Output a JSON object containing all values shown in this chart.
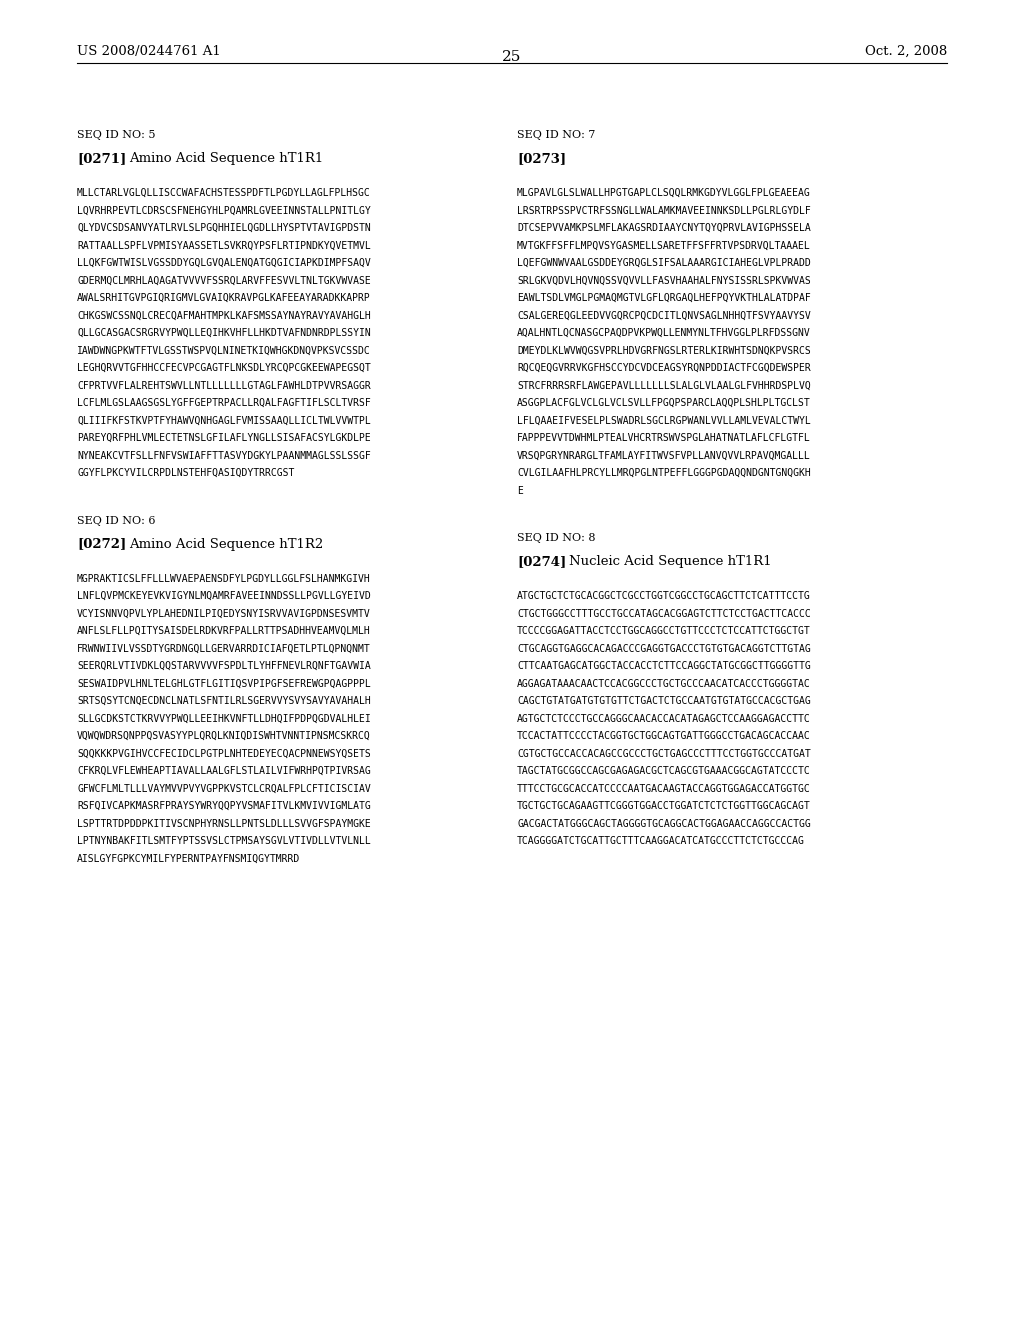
{
  "bg_color": "#ffffff",
  "page_width": 10.24,
  "page_height": 13.2,
  "header_left": "US 2008/0244761 A1",
  "header_right": "Oct. 2, 2008",
  "page_number": "25",
  "sections": [
    {
      "id": "seq5",
      "col": 0,
      "label": "SEQ ID NO: 5",
      "para_label": "[0271]",
      "para_title": "Amino Acid Sequence hT1R1",
      "sequence": "MLLCTARLVGLQLLISCCWAFACHSTESSPDFTLPGDYLLAGLFPLHSGCLQVRHRPEVTLCDRSCSFNEHGYHLPQAMRLGVEEINNSTALLPNITLGYQLYDVCSDSANVYATLRVLSLPGQHHIELQGDLLHYSPTV TAVIGPDST NRATTAALLSPFLVPMISYAASSETLSVKRQYPSFLRTIPNDKYQVETMVLLLQKFGWTWISLVGSSDDYGQLGVQALENQATGQGICIAPKDIMPFSAQVGDERMQCLMRHLAQAGATVVVVFSSRQLARVFFESVVLTNLTGKVWVASEAWALSRHITGVPGIQRIGMVLGVAIQKRAVPGLKAFEEAYARADKKAPRPCHKGSWCSSNQLCRECQAFMAHTMPKLKAFSMSSAYNAYRAVYAVAHGLHQLLGCASGACSRGRVYPWQLLEQIHKVHFLLHKDTVAFNDNRDPLSSYINIAWDWNGPKWTFTVLGSSTWSPVQLNINETKIQWHGKDNQVPKSVCSSDC LEGHQRVVTGFHHCCFECVPCGAGTFLNKSDLYRCQPCGKEEWAPEGSQTCFPRTVVFLALREHTSWVLLNTLLLLLLLGTAGLFAWHLDTPVVRSAGGRLCFLMLGSLAAGSGSLYG FFGEPTRPACLLRQALFAGFTIFLSCLTVRS FQLIIIFKFSTKVPTFYHAWVQNHGAGLFVMISSAAQLLICL TWLVVWTPLPAREYQRFPHLVMLECTETNS LGFILAFLYNGLLSISAFACSYLGKDLPENYNEAKCVTFSLLFNFVSWIAFFTTASVYDGKYLPAANMMAGLSSLSSGFGGYFLPKCYVILCRPDLNSTEHFQASIQDYTRRCGST"
    },
    {
      "id": "seq6",
      "col": 0,
      "label": "SEQ ID NO: 6",
      "para_label": "[0272]",
      "para_title": "Amino Acid Sequence hT1R2",
      "sequence": "MGPRAKTICSLFFLLLWVAEPAENSDFYLPGDYLLGGLFSLHANMKGIVHLNFLQVPMCKEYEVKVIGYNLMQAMRFAVEEINNDSSLLPGVLLGYEIVDVCYISNNVQPVLYPLAHEDNI LPIQEDYSNYISRVVAVIGPDNSESVMTVANFLSLFLLPQITYSAISDELRDKVRFPALLRTTPSADHHVEAMVQLMLHFRWNWIIVLVSS DTYGRDNGQLLGERVARRDICIAFQETLPTLQPNQNMTSEERQRLVTIVDKLQQSTARVVVVFSPDLTLYHFFNEVLRQNFTGAVWIASESWAIDPVLHNLTELGHLGTFLGITIQSVPIPGFSEFREWGPQAGPPPLSRTSQSYTCNQECDNCLNATLSFNTILRLSGERVVYSVYSAVYAVAHALHSLLGCDKSTCTKRVVYPWQLLEEIHKVNFTLLDHQIFPDPQGDVALHLEIVQWQWDRSQNPPQSVASYYPLQRQLKNIQDISWHTVNNTIPNSMCSKRCQSQQKKKPVGIHVCCFECIDCLPGTPLNHTEDEYECQACPNNEWSYQSETSCFKRQLVFLEWHEAPTIAVALLAALG FLSTLAILV IFWRHPQTPIVRSAGGFWCFLMLTLLLVAYMVVPVYVGPPKVSTCLCRQALFPLCFTICISCIAVRSFQIVCAPKMASRFPRAYSY WRYQQPYVSMAFITVLKMVIVVIGMLATGLSPTTRTDPDDPKITIVSCNPHYRNSLLPNTSLDLLLSVVGFSPAYMGKELPTNYNBAKFITLSMTFYPTSSVSLCTPMSAYSGVLVTIVDLLVTVLNLLAISLGYFGPKCYMILFYPERNTPAYFNSMIQGYTMRRD"
    },
    {
      "id": "seq7",
      "col": 1,
      "label": "SEQ ID NO: 7",
      "para_label": "[0273]",
      "para_title": "",
      "sequence": "MLGPAVLGLSLWALLHPGTGAPLCLSQQLRMKGDYVLGGLFPLGEAEEAGLRSRTRPSSPVCTRFSSNGLLWALAMKMAVEEINNKSDLLPGLRLGYDLFDTCSEPVVAMKPSLMFLAKAGSRDIAAYCNYTQYQPRVLAVIGPHSSELAMVTGKFFSFFLMPQVSYGASMELLSARETFFSFFRTVPSDRVQLTAAAELLQEFGWNWVAALGSDDE YGRQGLSIFSALAAARGICIAHEGLVPLPRADDSR LGKVQDVLHQVNQSSVQVVLLFASVHAAHALFNYSISSRLSPKVWVASEAWLTSDLVMGLPGMAQMGTVLGFLQRGAQLHEFPQYVKTHLALATDPAFCSALGEREQGLEEDVVGQRCPQCDCITLQNVSAGLNHHQTFSVYAAVYSVAQALHNTLQCNASGCPAQDPVKPWQLLENMYNLTFHVGGLPLRFDSSGN VDMEYDLKLWVWQGSVPRLHDVGRFNGSLRTERLKIRWHTSDNQKPVSRCSRQCQEQGVRRVKGFHSCCYDCVDCEAGSYRQNPDDIACTFCGQDEWSPERSTRCFRRRSRFLAWGEPAVLLLLLLLSLALGLVLAALGLFVHHRDSPLVQASGGPLACFGLVCLGLVCLSVLLFPGQPSPARCLAQQPLSHLPLTGCLSTLFLQAAEIFVESELPLSWADRLSGCLRGPWANLVVLLAMLVEVALCTWYLFAPPPEVVTDWHMLPTEALVHCRTRSWVSPGLAHATNATLAFLCFLGTFLVRSQPGRYNRARGLTFAMLAYFITWVSFVPLLANVQVVLRPAVQMGALLLCVLGILAAFHLPRCYLLMRQPGLNTPEFFLGGGPGDAQQNDGNTGNQGKHE"
    },
    {
      "id": "seq8",
      "col": 1,
      "label": "SEQ ID NO: 8",
      "para_label": "[0274]",
      "para_title": "Nucleic Acid Sequence hT1R1",
      "sequence": "ATGCTGCTCTGCACGGCTCGCCTGGTCGGCCTGCAGCTTCTCATTTCCTGCTGCTGGGCCTTTGCCTGCCATAGCACGGAGTCTTCTCCTGACTTCACCCTCCCCGGAGATTACCTCCTGGCAGGCCTGTTCCCTCTCCATTCTGGCTGTCTGCAGGTGAGGCACAGACCCGAGGTGACCCTGTGTGACAGGTCTTGTAGCTTCAATGAGCATGGCTACCACCTCTTCCAGGCTATGCGGCTTGGGGTTGAGGAGATAAACAACTCCACGGCCCTGCTGCCCAACATCACCCTGGGGTACCAGCTGTATGATGTGTGTTCTGACTCTGCCAATGTGTATGCCACGCTGAGAGTGCTCTCCCTGCCAGGGCAACACCACATAGAGCTCCAAGGAGACCTTCTCCACTATTCCCCTACGGTGCTGGCAGTGATTGGGCCTGACAGCACCAACCGTGCTGCCACCACAGCCGCCCTGCTGAGCCCTTTCCTGGTGCCCATGATTAGCTATGCGGCCAGCGAGAGACGCTCAGCGTGAAACGGCAGTATCCCTCTTTCCTGCGCACCATCCCCAATGACAAGTACCAGGTGGAGACCATGGTGCTGCTGCTGCAGAAGTTCGGGTGGACCTGGATCTCTCTGGTTGGCAGCAGTGACGACTATGGGCAGCTAGGGGTGCAGGCACTGGAGAACCAGGCCACTGGTCAGGGGATCTGCATTGCTTTCAAGGACATCATGCCCTTCTCTGCCCAG"
    }
  ]
}
